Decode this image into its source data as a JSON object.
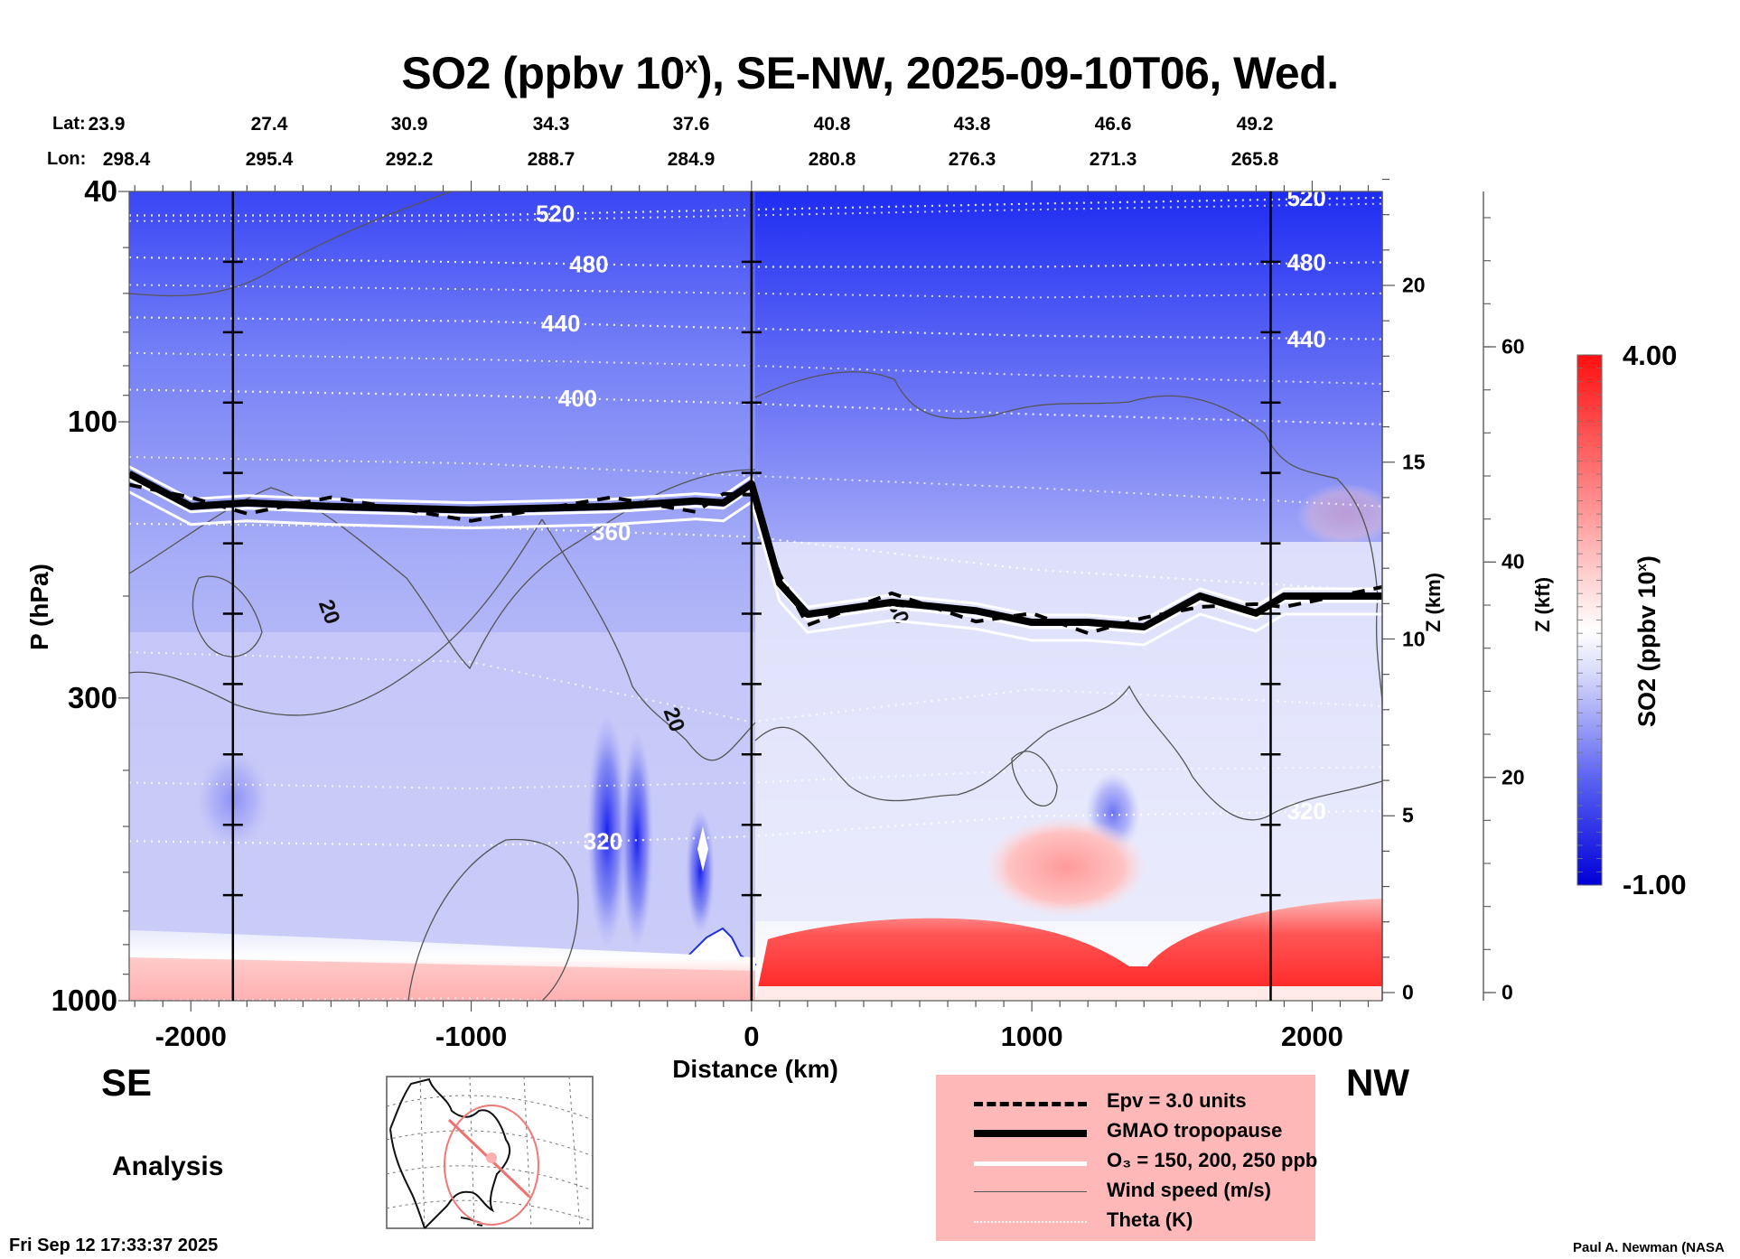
{
  "title": {
    "main": "SO2 (ppbv 10",
    "sup": "x",
    "rest": "), SE-NW, 2025-09-10T06, Wed."
  },
  "lat_label": "Lat:",
  "lon_label": "Lon:",
  "lat_values": [
    "23.9",
    "27.4",
    "30.9",
    "34.3",
    "37.6",
    "40.8",
    "43.8",
    "46.6",
    "49.2"
  ],
  "lon_values": [
    "298.4",
    "295.4",
    "292.2",
    "288.7",
    "284.9",
    "280.8",
    "276.3",
    "271.3",
    "265.8"
  ],
  "direction_left": "SE",
  "direction_right": "NW",
  "analysis_label": "Analysis",
  "timestamp": "Fri Sep 12 17:33:37 2025",
  "credit": "Paul A. Newman (NASA",
  "colorbar": {
    "max_label": "4.00",
    "min_label": "-1.00",
    "title": "SO2 (ppbv 10",
    "title_sup": "x",
    "title_end": ")",
    "colors": {
      "low": "#0000e0",
      "mid": "#ffffff",
      "high": "#ff0000"
    }
  },
  "legend": {
    "items": [
      {
        "label": "Epv = 3.0 units",
        "style": "dashed-thick"
      },
      {
        "label": "GMAO tropopause",
        "style": "solid-heavy"
      },
      {
        "label": "O₃ = 150, 200, 250 ppb",
        "style": "white-thick"
      },
      {
        "label": "Wind speed (m/s)",
        "style": "thin-gray"
      },
      {
        "label": "Theta (K)",
        "style": "white-dotted"
      }
    ]
  },
  "chart_data": {
    "type": "heatmap",
    "title": "SO2 (ppbv 10^x), SE-NW, 2025-09-10T06, Wed.",
    "xlabel": "Distance (km)",
    "ylabel": "P (hPa)",
    "y2label": "Z (km)",
    "y3label": "Z (kft)",
    "colorbar_label": "SO2 (ppbv 10^x)",
    "colorbar_range": [
      -1.0,
      4.0
    ],
    "xlim": [
      -2220,
      2250
    ],
    "ylim_hPa": [
      1000,
      40
    ],
    "y_scale": "log",
    "x_ticks": [
      -2000,
      -1000,
      0,
      1000,
      2000
    ],
    "x_tick_labels": [
      "-2000",
      "-1000",
      "0",
      "1000",
      "2000"
    ],
    "y_ticks_hPa": [
      40,
      100,
      300,
      1000
    ],
    "y_tick_labels": [
      "40",
      "100",
      "300",
      "1000"
    ],
    "z_km_ticks": [
      0,
      5,
      10,
      15,
      20
    ],
    "z_kft_ticks": [
      0,
      20,
      40,
      60
    ],
    "vertical_reference_lines_km": [
      -1850,
      0,
      1852
    ],
    "theta_contours_K": [
      {
        "value": 520,
        "label_x_km": -700,
        "p_hPa": [
          44,
          44,
          43,
          42,
          41
        ]
      },
      {
        "value": 480,
        "label_x_km": -580,
        "p_hPa": [
          52,
          53,
          54,
          54,
          53
        ]
      },
      {
        "value": 440,
        "label_x_km": -680,
        "p_hPa": [
          66,
          67,
          69,
          71,
          72
        ]
      },
      {
        "value": 400,
        "label_x_km": -620,
        "p_hPa": [
          88,
          90,
          93,
          97,
          101
        ]
      },
      {
        "value": 360,
        "label_x_km": -500,
        "p_hPa": [
          150,
          152,
          158,
          180,
          196
        ]
      },
      {
        "value": 320,
        "label_x_km": -530,
        "p_hPa": [
          530,
          540,
          520,
          480,
          470
        ]
      }
    ],
    "theta_x_km": [
      -2220,
      -1000,
      0,
      1000,
      2250
    ],
    "tropopause_hPa": {
      "x_km": [
        -2220,
        -2000,
        -1800,
        -1500,
        -1000,
        -500,
        -200,
        -100,
        0,
        100,
        200,
        500,
        800,
        1000,
        1200,
        1400,
        1600,
        1800,
        1900,
        2250
      ],
      "p_hPa": [
        123,
        140,
        138,
        140,
        142,
        140,
        137,
        138,
        128,
        190,
        215,
        205,
        212,
        222,
        222,
        226,
        200,
        214,
        200,
        200
      ]
    },
    "wind_speed_contour_labels": [
      {
        "value": 20,
        "x_km": -1530,
        "p_hPa": 215
      },
      {
        "value": 20,
        "x_km": -300,
        "p_hPa": 330
      },
      {
        "value": 30,
        "x_km": 500,
        "p_hPa": 215
      }
    ],
    "so2_features": [
      {
        "region": "boundary layer SE of 0 km",
        "x_km": [
          -2220,
          0
        ],
        "p_hPa": [
          1000,
          900
        ],
        "approx_value": 0.5
      },
      {
        "region": "boundary layer NW of 0 km",
        "x_km": [
          0,
          2250
        ],
        "p_hPa": [
          1000,
          820
        ],
        "approx_value": 3.0
      },
      {
        "region": "elevated plume",
        "x_km": [
          700,
          1300
        ],
        "p_hPa": [
          800,
          550
        ],
        "approx_value": 1.2
      },
      {
        "region": "upper stratosphere",
        "x_km": [
          -2220,
          2250
        ],
        "p_hPa": [
          40,
          80
        ],
        "approx_value": -0.8
      }
    ]
  }
}
